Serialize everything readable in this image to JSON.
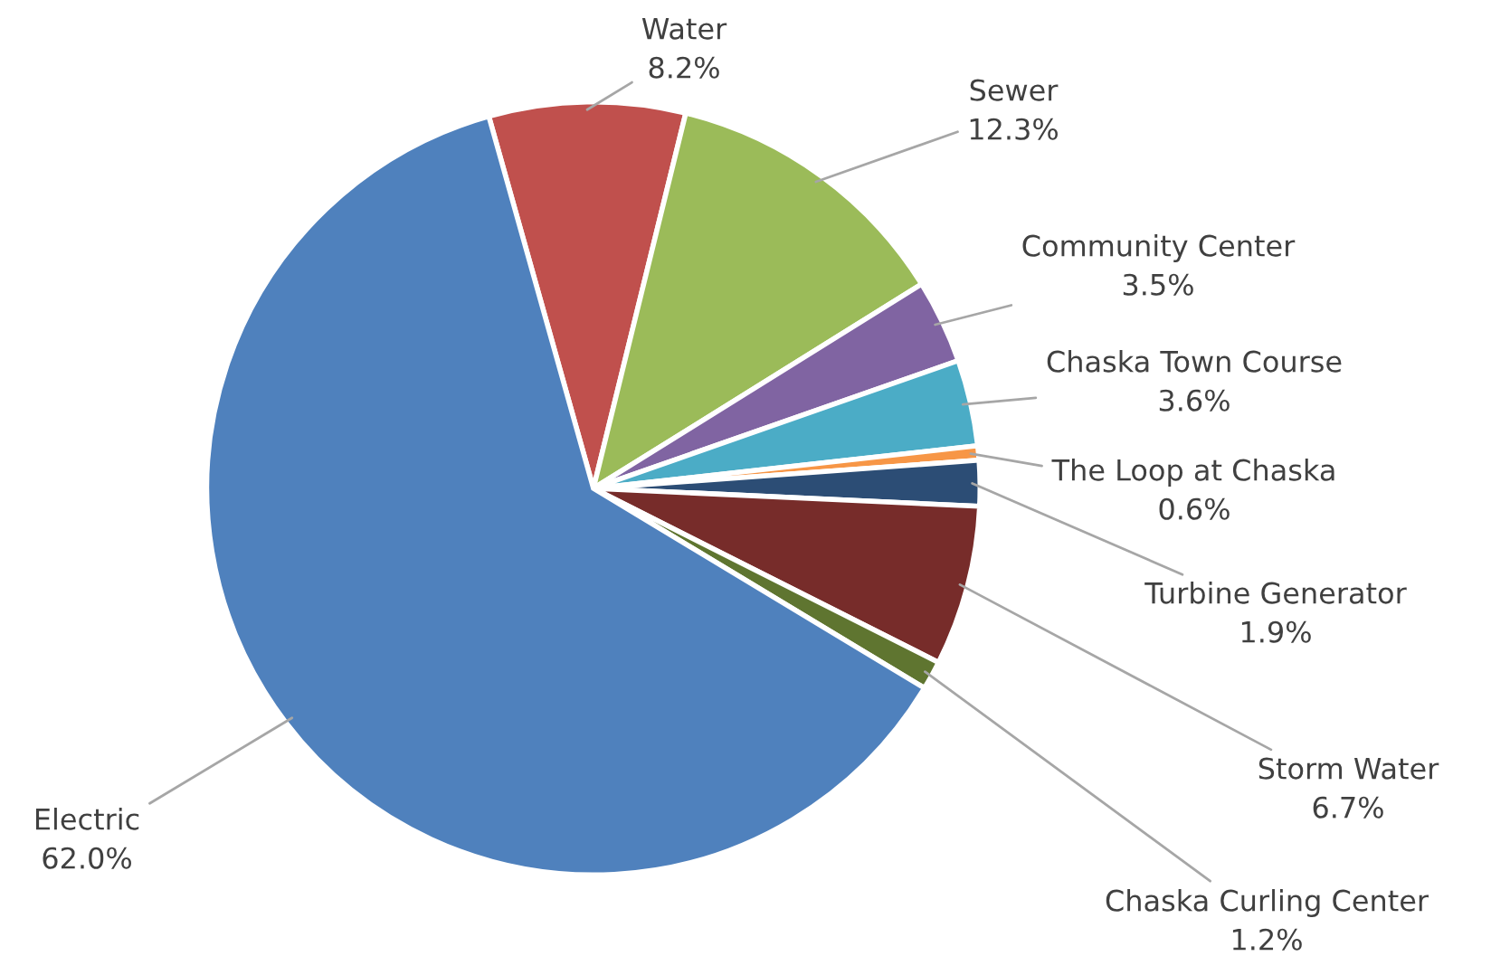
{
  "chart_data": {
    "type": "pie",
    "categories": [
      "Water",
      "Sewer",
      "Community Center",
      "Chaska Town Course",
      "The Loop at Chaska",
      "Turbine Generator",
      "Storm Water",
      "Chaska Curling Center",
      "Electric"
    ],
    "values": [
      8.2,
      12.3,
      3.5,
      3.6,
      0.6,
      1.9,
      6.7,
      1.2,
      62.0
    ],
    "value_labels": [
      "8.2%",
      "12.3%",
      "3.5%",
      "3.6%",
      "0.6%",
      "1.9%",
      "6.7%",
      "1.2%",
      "62.0%"
    ],
    "colors": [
      "#c0504d",
      "#9bbb59",
      "#8064a2",
      "#4bacc6",
      "#f79646",
      "#2c4d75",
      "#772c2a",
      "#5f7530",
      "#4f81bd"
    ],
    "legend": false
  }
}
